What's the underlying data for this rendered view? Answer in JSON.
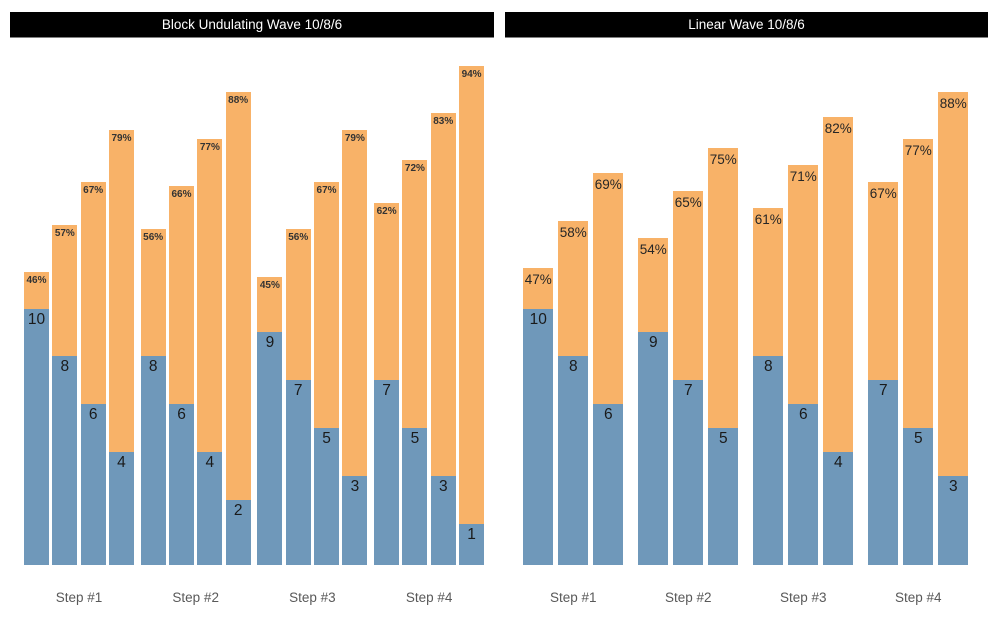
{
  "colors": {
    "reps_segment": "#6F98BA",
    "intensity_segment": "#F8B268",
    "title_bar_bg": "#000000",
    "title_bar_text": "#FFFFFF",
    "step_label": "#595959",
    "background": "#FFFFFF"
  },
  "chart_data": [
    {
      "type": "bar",
      "subtype": "grouped-stacked-columns",
      "title": "Block Undulating Wave 10/8/6",
      "categories": [
        "Step #1",
        "Step #2",
        "Step #3",
        "Step #4"
      ],
      "value_labels": "reps shown at top of blue segment, intensity % shown at top of orange column",
      "groups": [
        {
          "category": "Step #1",
          "bars": [
            {
              "reps": 10,
              "intensity_pct": 46
            },
            {
              "reps": 8,
              "intensity_pct": 57
            },
            {
              "reps": 6,
              "intensity_pct": 67
            },
            {
              "reps": 4,
              "intensity_pct": 79
            }
          ]
        },
        {
          "category": "Step #2",
          "bars": [
            {
              "reps": 8,
              "intensity_pct": 56
            },
            {
              "reps": 6,
              "intensity_pct": 66
            },
            {
              "reps": 4,
              "intensity_pct": 77
            },
            {
              "reps": 2,
              "intensity_pct": 88
            }
          ]
        },
        {
          "category": "Step #3",
          "bars": [
            {
              "reps": 9,
              "intensity_pct": 45
            },
            {
              "reps": 7,
              "intensity_pct": 56
            },
            {
              "reps": 5,
              "intensity_pct": 67
            },
            {
              "reps": 3,
              "intensity_pct": 79
            }
          ]
        },
        {
          "category": "Step #4",
          "bars": [
            {
              "reps": 7,
              "intensity_pct": 62
            },
            {
              "reps": 5,
              "intensity_pct": 72
            },
            {
              "reps": 3,
              "intensity_pct": 83
            },
            {
              "reps": 1,
              "intensity_pct": 94
            }
          ]
        }
      ]
    },
    {
      "type": "bar",
      "subtype": "grouped-stacked-columns",
      "title": "Linear Wave 10/8/6",
      "categories": [
        "Step #1",
        "Step #2",
        "Step #3",
        "Step #4"
      ],
      "value_labels": "reps shown at top of blue segment, intensity % shown at top of orange column",
      "groups": [
        {
          "category": "Step #1",
          "bars": [
            {
              "reps": 10,
              "intensity_pct": 47
            },
            {
              "reps": 8,
              "intensity_pct": 58
            },
            {
              "reps": 6,
              "intensity_pct": 69
            }
          ]
        },
        {
          "category": "Step #2",
          "bars": [
            {
              "reps": 9,
              "intensity_pct": 54
            },
            {
              "reps": 7,
              "intensity_pct": 65
            },
            {
              "reps": 5,
              "intensity_pct": 75
            }
          ]
        },
        {
          "category": "Step #3",
          "bars": [
            {
              "reps": 8,
              "intensity_pct": 61
            },
            {
              "reps": 6,
              "intensity_pct": 71
            },
            {
              "reps": 4,
              "intensity_pct": 82
            }
          ]
        },
        {
          "category": "Step #4",
          "bars": [
            {
              "reps": 7,
              "intensity_pct": 67
            },
            {
              "reps": 5,
              "intensity_pct": 77
            },
            {
              "reps": 3,
              "intensity_pct": 88
            }
          ]
        }
      ]
    }
  ]
}
